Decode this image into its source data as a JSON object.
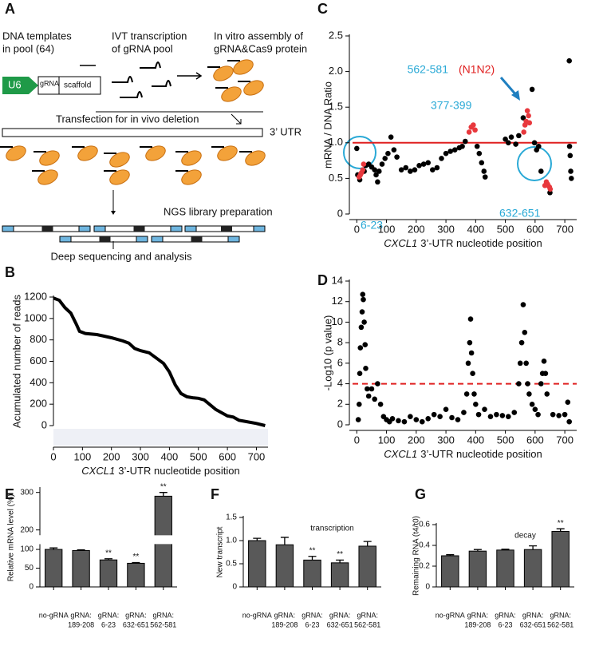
{
  "diagram": {
    "label": "A",
    "texts": [
      "DNA templates",
      "in pool (64)",
      "IVT transcription",
      "of gRNA pool",
      "In vitro assembly of",
      "gRNA&Cas9 protein",
      "U6",
      "gRNA",
      "scaffold",
      "Transfection for in vivo deletion",
      "3’ UTR",
      "NGS library preparation",
      "Deep sequencing and analysis"
    ]
  },
  "chart_data": [
    {
      "label": "B",
      "type": "line",
      "y_label": "Acumulated number of reads",
      "x_label": [
        "CXCL1",
        "3’-UTR nucleotide position"
      ],
      "x": [
        0,
        20,
        40,
        60,
        80,
        90,
        110,
        150,
        200,
        240,
        260,
        280,
        300,
        330,
        360,
        380,
        400,
        420,
        440,
        460,
        480,
        500,
        520,
        560,
        600,
        620,
        640,
        660,
        700,
        730
      ],
      "values": [
        1190,
        1170,
        1100,
        1050,
        940,
        880,
        860,
        850,
        820,
        790,
        770,
        720,
        700,
        680,
        620,
        580,
        500,
        380,
        300,
        270,
        260,
        255,
        240,
        150,
        90,
        80,
        50,
        40,
        20,
        0
      ],
      "color": "#000000",
      "xlim": [
        0,
        740
      ],
      "ylim": [
        0,
        1200
      ],
      "xticks": [
        0,
        100,
        200,
        300,
        400,
        500,
        600,
        700
      ],
      "yticks": [
        0,
        200,
        400,
        600,
        800,
        1000,
        1200
      ]
    },
    {
      "label": "C",
      "type": "scatter",
      "y_label": "mRNA / DNA Ratio",
      "x_label": [
        "CXCL1",
        "3’-UTR nucleotide position"
      ],
      "series": [
        {
          "color": "#000000",
          "x": [
            0,
            3,
            10,
            25,
            30,
            40,
            50,
            60,
            65,
            70,
            75,
            85,
            95,
            105,
            115,
            125,
            135,
            150,
            165,
            180,
            195,
            210,
            225,
            240,
            255,
            270,
            285,
            300,
            315,
            330,
            345,
            355,
            365,
            405,
            412,
            420,
            428,
            432,
            500,
            510,
            520,
            535,
            545,
            560,
            590,
            598,
            605,
            612,
            620,
            650,
            715,
            716,
            718,
            720,
            722
          ],
          "values": [
            0.92,
            0.55,
            0.48,
            0.6,
            0.68,
            0.7,
            0.66,
            0.62,
            0.55,
            0.45,
            0.6,
            0.7,
            0.78,
            0.85,
            1.08,
            0.9,
            0.8,
            0.62,
            0.65,
            0.6,
            0.62,
            0.68,
            0.7,
            0.72,
            0.62,
            0.65,
            0.78,
            0.85,
            0.88,
            0.9,
            0.93,
            0.95,
            1.02,
            0.95,
            0.85,
            0.72,
            0.6,
            0.52,
            1.05,
            1.0,
            1.08,
            0.98,
            1.1,
            1.35,
            1.75,
            1.0,
            0.9,
            0.95,
            0.6,
            0.3,
            2.15,
            0.95,
            0.82,
            0.6,
            0.5
          ]
        },
        {
          "color": "#e8383d",
          "x": [
            8,
            12,
            16,
            20,
            23,
            378,
            385,
            392,
            398,
            562,
            566,
            570,
            574,
            578,
            581,
            633,
            638,
            642,
            648,
            651
          ],
          "values": [
            0.52,
            0.55,
            0.58,
            0.62,
            0.7,
            1.15,
            1.22,
            1.25,
            1.18,
            1.15,
            1.25,
            1.3,
            1.45,
            1.38,
            1.28,
            0.4,
            0.45,
            0.42,
            0.38,
            0.35
          ]
        }
      ],
      "hline": {
        "value": 1,
        "color": "#e02020"
      },
      "annotations": [
        "562-581",
        "(N1N2)",
        "377-399",
        "6-23",
        "632-651"
      ],
      "xlim": [
        -25,
        740
      ],
      "ylim": [
        0,
        2.5
      ],
      "xticks": [
        0,
        100,
        200,
        300,
        400,
        500,
        600,
        700
      ],
      "yticks": [
        0,
        0.5,
        {
          "value": 1,
          "label": "1.0"
        },
        1.5,
        {
          "value": 2,
          "label": "2.0"
        },
        2.5
      ]
    },
    {
      "label": "D",
      "type": "scatter",
      "y_label": "-Log10 (p value)",
      "x_label": [
        "CXCL1",
        "3’-UTR nucleotide position"
      ],
      "series": [
        {
          "color": "#000000",
          "x": [
            5,
            8,
            10,
            12,
            15,
            18,
            20,
            22,
            25,
            28,
            30,
            35,
            40,
            50,
            60,
            70,
            80,
            90,
            100,
            110,
            120,
            140,
            160,
            180,
            200,
            220,
            240,
            260,
            280,
            300,
            320,
            340,
            360,
            370,
            375,
            380,
            383,
            386,
            390,
            395,
            400,
            410,
            430,
            450,
            470,
            490,
            510,
            530,
            545,
            550,
            555,
            560,
            565,
            570,
            575,
            580,
            590,
            600,
            610,
            620,
            625,
            630,
            635,
            640,
            660,
            680,
            700,
            710,
            715
          ],
          "values": [
            0.5,
            2,
            5,
            7.5,
            9.5,
            11,
            12.7,
            12.2,
            10,
            7.8,
            5.5,
            3.5,
            2.8,
            3.5,
            2.5,
            4,
            2,
            0.8,
            0.5,
            0.3,
            0.6,
            0.4,
            0.3,
            0.8,
            0.5,
            0.3,
            0.6,
            1,
            0.8,
            1.5,
            0.7,
            0.5,
            1.2,
            3,
            6,
            8,
            10.3,
            7,
            5,
            3,
            2,
            1,
            1.5,
            0.8,
            1,
            0.9,
            0.8,
            1.2,
            4,
            6,
            8,
            11.7,
            9,
            6,
            4,
            3,
            2,
            1.5,
            1,
            4,
            5,
            6.2,
            5,
            3,
            1,
            0.9,
            1,
            2.2,
            0.3
          ]
        }
      ],
      "hline": {
        "value": 4,
        "color": "#e02020",
        "dashed": true
      },
      "xlim": [
        -25,
        740
      ],
      "ylim": [
        0,
        14
      ],
      "xticks": [
        0,
        100,
        200,
        300,
        400,
        500,
        600,
        700
      ],
      "yticks": [
        0,
        2,
        4,
        6,
        8,
        10,
        12,
        14
      ]
    },
    {
      "label": "E",
      "type": "bar",
      "y_label": "Relative mRNA level (%)",
      "categories": [
        [
          "no-gRNA"
        ],
        [
          "gRNA:",
          "189-208"
        ],
        [
          "gRNA:",
          "6-23"
        ],
        [
          "gRNA:",
          "632-651"
        ],
        [
          "gRNA:",
          "562-581"
        ]
      ],
      "values": [
        100,
        97,
        72,
        63,
        290
      ],
      "errors": [
        4,
        2,
        3,
        2,
        10
      ],
      "significance": [
        null,
        null,
        "**",
        "**",
        "**"
      ],
      "color": "#595959",
      "ylim": [
        0,
        310
      ],
      "ybreak": [
        110,
        190
      ],
      "yticks": [
        0,
        50,
        100,
        200,
        300
      ]
    },
    {
      "label": "F",
      "type": "bar",
      "y_label": "New transcript",
      "subtitle": "transcription",
      "categories": [
        [
          "no-gRNA"
        ],
        [
          "gRNA:",
          "189-208"
        ],
        [
          "gRNA:",
          "6-23"
        ],
        [
          "gRNA:",
          "632-651"
        ],
        [
          "gRNA:",
          "562-581"
        ]
      ],
      "values": [
        1.0,
        0.91,
        0.58,
        0.52,
        0.88
      ],
      "errors": [
        0.05,
        0.16,
        0.08,
        0.06,
        0.1
      ],
      "significance": [
        null,
        null,
        "**",
        "**",
        null
      ],
      "color": "#595959",
      "ylim": [
        0,
        1.5
      ],
      "yticks": [
        0,
        0.5,
        {
          "value": 1,
          "label": "1.0"
        },
        1.5
      ]
    },
    {
      "label": "G",
      "type": "bar",
      "y_label": "Remaining RNA (t4/t0)",
      "subtitle": "decay",
      "categories": [
        [
          "no-gRNA"
        ],
        [
          "gRNA:",
          "189-208"
        ],
        [
          "gRNA:",
          "6-23"
        ],
        [
          "gRNA:",
          "632-651"
        ],
        [
          "gRNA:",
          "562-581"
        ]
      ],
      "values": [
        0.3,
        0.345,
        0.355,
        0.36,
        0.535
      ],
      "errors": [
        0.01,
        0.015,
        0.008,
        0.035,
        0.025
      ],
      "significance": [
        null,
        null,
        null,
        null,
        "**"
      ],
      "color": "#595959",
      "ylim": [
        0,
        0.6
      ],
      "yticks": [
        0,
        0.2,
        0.4,
        0.6
      ]
    }
  ]
}
